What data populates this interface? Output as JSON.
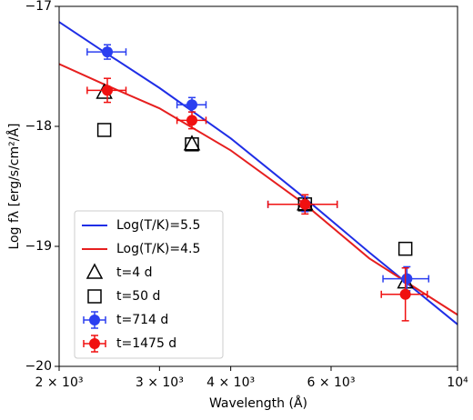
{
  "chart_data": {
    "type": "line",
    "xlabel": "Wavelength (Å)",
    "ylabel": "Log fλ [erg/s/cm²/Å]",
    "xscale": "log",
    "xlim": [
      2000,
      10000
    ],
    "ylim": [
      -20,
      -17
    ],
    "xticks": [
      {
        "value": 2000,
        "label": "2 × 10³"
      },
      {
        "value": 3000,
        "label": "3 × 10³"
      },
      {
        "value": 4000,
        "label": "4 × 10³"
      },
      {
        "value": 6000,
        "label": "6 × 10³"
      },
      {
        "value": 10000,
        "label": "10⁴"
      }
    ],
    "yticks": [
      {
        "value": -20,
        "label": "−20"
      },
      {
        "value": -19,
        "label": "−19"
      },
      {
        "value": -18,
        "label": "−18"
      },
      {
        "value": -17,
        "label": "−17"
      }
    ],
    "legend": "lower left",
    "series": [
      {
        "name": "Log(T/K)=5.5",
        "color": "#1f2ee6",
        "style": "line",
        "x": [
          2000,
          2400,
          3000,
          4000,
          5400,
          7000,
          10000
        ],
        "values": [
          -17.13,
          -17.38,
          -17.68,
          -18.1,
          -18.6,
          -19.05,
          -19.65
        ]
      },
      {
        "name": "Log(T/K)=4.5",
        "color": "#e61f1f",
        "style": "line",
        "x": [
          2000,
          2400,
          3000,
          4000,
          5400,
          7000,
          10000
        ],
        "values": [
          -17.48,
          -17.65,
          -17.85,
          -18.2,
          -18.65,
          -19.1,
          -19.57
        ]
      },
      {
        "name": "t=4 d",
        "color": "#000000",
        "style": "marker",
        "marker": "triangle",
        "x": [
          2400,
          3420,
          5400,
          8100
        ],
        "values": [
          -17.72,
          -18.15,
          -18.65,
          -19.3
        ]
      },
      {
        "name": "t=50 d",
        "color": "#000000",
        "style": "marker",
        "marker": "square",
        "x": [
          2400,
          3420,
          5400,
          8100
        ],
        "values": [
          -18.03,
          -18.15,
          -18.65,
          -19.02
        ]
      },
      {
        "name": "t=714 d",
        "color": "#2b3ff0",
        "style": "errorbar",
        "marker": "circle",
        "x": [
          2430,
          3420,
          5400,
          8150
        ],
        "values": [
          -17.38,
          -17.82,
          -18.65,
          -19.27
        ],
        "xerr": [
          190,
          200,
          750,
          750
        ],
        "yerr": [
          0.06,
          0.06,
          0.06,
          0.1
        ]
      },
      {
        "name": "t=1475 d",
        "color": "#f01010",
        "style": "errorbar",
        "marker": "circle",
        "x": [
          2430,
          3420,
          5400,
          8100
        ],
        "values": [
          -17.7,
          -17.95,
          -18.65,
          -19.4
        ],
        "xerr": [
          190,
          200,
          750,
          750
        ],
        "yerr": [
          0.1,
          0.07,
          0.08,
          0.22
        ]
      }
    ]
  }
}
